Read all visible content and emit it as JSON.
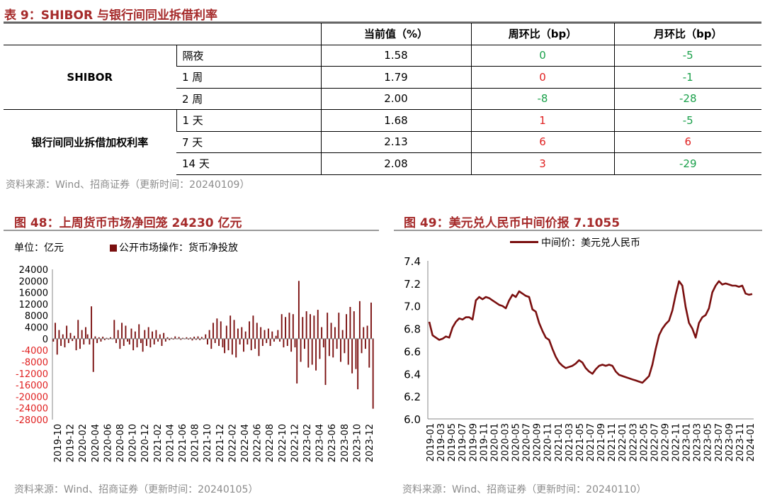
{
  "table9": {
    "title": "表 9：SHIBOR 与银行间同业拆借利率",
    "headers": [
      "当前值（%）",
      "周环比（bp）",
      "月环比（bp）"
    ],
    "groups": [
      {
        "name": "SHIBOR",
        "rows": [
          {
            "term": "隔夜",
            "current": "1.58",
            "wow": "0",
            "mom": "-5"
          },
          {
            "term": "1 周",
            "current": "1.79",
            "wow": "0",
            "mom": "-1"
          },
          {
            "term": "2 周",
            "current": "2.00",
            "wow": "-8",
            "mom": "-28"
          }
        ]
      },
      {
        "name": "银行间同业拆借加权利率",
        "rows": [
          {
            "term": "1 天",
            "current": "1.68",
            "wow": "1",
            "mom": "-5"
          },
          {
            "term": "7 天",
            "current": "2.13",
            "wow": "6",
            "mom": "6"
          },
          {
            "term": "14 天",
            "current": "2.08",
            "wow": "3",
            "mom": "-29"
          }
        ]
      }
    ],
    "colors": {
      "wow": [
        "#1aa04a",
        "#e02020",
        "#1aa04a",
        "#e02020",
        "#e02020",
        "#e02020"
      ],
      "mom": [
        "#1aa04a",
        "#1aa04a",
        "#1aa04a",
        "#1aa04a",
        "#e02020",
        "#1aa04a"
      ]
    },
    "source": "资料来源：Wind、招商证券（更新时间：20240109）"
  },
  "fig48": {
    "title": "图 48：上周货币市场净回笼 24230 亿元",
    "unit": "单位：亿元",
    "source": "资料来源：Wind、招商证券（更新时间：20240105）",
    "chart_data": {
      "type": "bar",
      "series": [
        {
          "name": "公开市场操作：货币净投放",
          "color": "#7a0f0f"
        }
      ],
      "ylim": [
        -28000,
        24000
      ],
      "yticks": [
        "24000",
        "20000",
        "16000",
        "12000",
        "8000",
        "4000",
        "0",
        "-4000",
        "-8000",
        "-12000",
        "-16000",
        "-20000",
        "-24000",
        "-28000"
      ],
      "xticks": [
        "2019-10",
        "2019-12",
        "2020-02",
        "2020-04",
        "2020-06",
        "2020-08",
        "2020-10",
        "2020-12",
        "2021-02",
        "2021-04",
        "2021-06",
        "2021-08",
        "2021-10",
        "2021-12",
        "2022-02",
        "2022-04",
        "2022-06",
        "2022-08",
        "2022-10",
        "2022-12",
        "2023-02",
        "2023-04",
        "2023-06",
        "2023-08",
        "2023-10",
        "2023-12"
      ],
      "values": [
        -1000,
        5500,
        -5500,
        3000,
        -2500,
        1500,
        -3000,
        4500,
        -1500,
        2000,
        -800,
        1000,
        -4000,
        6500,
        -3500,
        3000,
        -2000,
        4000,
        1500,
        -2000,
        11200,
        -11500,
        800,
        -1500,
        500,
        -1000,
        700,
        -500,
        300,
        -300,
        500,
        -200,
        6500,
        -1500,
        3000,
        -3500,
        5500,
        -2500,
        4500,
        -1000,
        -2000,
        3500,
        -4000,
        2500,
        -3000,
        5000,
        -1500,
        -4500,
        3000,
        -2500,
        4000,
        -3000,
        2500,
        -2000,
        3000,
        -1000,
        1500,
        -2500,
        2000,
        -1000,
        500,
        -500,
        300,
        -300,
        800,
        -200,
        600,
        -400,
        300,
        -200,
        500,
        -300,
        400,
        -600,
        700,
        -400,
        800,
        -500,
        600,
        -300,
        1500,
        -2000,
        3000,
        -3500,
        5500,
        -1500,
        7000,
        -2500,
        6000,
        -3000,
        -5000,
        4500,
        -4000,
        8000,
        -5500,
        6500,
        -6500,
        3500,
        -2000,
        4000,
        -4500,
        2500,
        -2000,
        6000,
        -4000,
        8000,
        -3500,
        5500,
        -6000,
        4000,
        -2500,
        3000,
        -1500,
        3500,
        -2500,
        2500,
        -1000,
        1000,
        3000,
        -1000,
        8500,
        -3000,
        7500,
        -2500,
        9000,
        -4500,
        8500,
        -3000,
        -15500,
        20000,
        -8000,
        7500,
        -3500,
        9500,
        -10000,
        8500,
        -9000,
        8000,
        -11000,
        10000,
        -7000,
        4000,
        -3000,
        -16000,
        9000,
        -6000,
        5500,
        -6500,
        4000,
        -3500,
        9000,
        -8000,
        3000,
        -5000,
        8500,
        -9000,
        11000,
        -12000,
        9500,
        -10500,
        -17500,
        13000,
        -5000,
        4000,
        -3500,
        4500,
        -10000,
        12500,
        -24230
      ]
    }
  },
  "fig49": {
    "title": "图 49：美元兑人民币中间价报 7.1055",
    "source": "资料来源：Wind、招商证券（更新时间：20240110）",
    "chart_data": {
      "type": "line",
      "series": [
        {
          "name": "中间价：美元兑人民币",
          "color": "#7a0f0f"
        }
      ],
      "ylim": [
        6.0,
        7.4
      ],
      "yticks": [
        "7.4",
        "7.2",
        "7.0",
        "6.8",
        "6.6",
        "6.4",
        "6.2",
        "6.0"
      ],
      "xticks": [
        "2019-01",
        "2019-03",
        "2019-05",
        "2019-07",
        "2019-09",
        "2019-11",
        "2020-01",
        "2020-03",
        "2020-05",
        "2020-07",
        "2020-09",
        "2020-11",
        "2021-01",
        "2021-03",
        "2021-05",
        "2021-07",
        "2021-09",
        "2021-11",
        "2022-01",
        "2022-03",
        "2022-05",
        "2022-07",
        "2022-09",
        "2022-11",
        "2023-01",
        "2023-03",
        "2023-05",
        "2023-07",
        "2023-09",
        "2023-11",
        "2024-01"
      ],
      "values": [
        6.86,
        6.74,
        6.72,
        6.7,
        6.71,
        6.73,
        6.72,
        6.81,
        6.86,
        6.89,
        6.88,
        6.9,
        6.9,
        6.88,
        7.05,
        7.08,
        7.06,
        7.08,
        7.07,
        7.05,
        7.03,
        7.01,
        7.0,
        6.98,
        7.05,
        7.1,
        7.08,
        7.13,
        7.11,
        7.09,
        7.08,
        6.97,
        6.95,
        6.85,
        6.78,
        6.72,
        6.7,
        6.62,
        6.55,
        6.5,
        6.47,
        6.45,
        6.46,
        6.47,
        6.49,
        6.52,
        6.5,
        6.45,
        6.42,
        6.4,
        6.44,
        6.47,
        6.48,
        6.47,
        6.48,
        6.47,
        6.42,
        6.39,
        6.38,
        6.37,
        6.36,
        6.35,
        6.34,
        6.33,
        6.32,
        6.35,
        6.38,
        6.48,
        6.62,
        6.74,
        6.8,
        6.84,
        6.87,
        6.96,
        7.1,
        7.22,
        7.18,
        6.99,
        6.85,
        6.8,
        6.72,
        6.85,
        6.9,
        6.92,
        6.98,
        7.12,
        7.18,
        7.22,
        7.19,
        7.2,
        7.19,
        7.18,
        7.18,
        7.17,
        7.18,
        7.11,
        7.1,
        7.1055
      ]
    }
  }
}
